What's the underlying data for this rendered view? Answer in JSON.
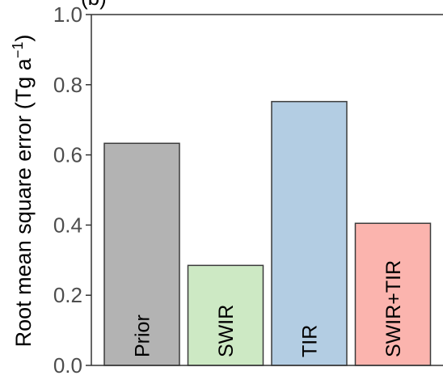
{
  "chart_data": {
    "type": "bar",
    "panel_label": "(b)",
    "categories": [
      "Prior",
      "SWIR",
      "TIR",
      "SWIR+TIR"
    ],
    "values": [
      0.633,
      0.285,
      0.752,
      0.405
    ],
    "colors": [
      "#b3b3b3",
      "#cde9c4",
      "#b3cde3",
      "#fbb4ae"
    ],
    "ylabel": "Root mean square error",
    "ylabel_unit": "(Tg a",
    "ylabel_unit_sup": "−1",
    "ylabel_unit_close": ")",
    "ylim": [
      0.0,
      1.0
    ],
    "yticks": [
      "0.0",
      "0.2",
      "0.4",
      "0.6",
      "0.8",
      "1.0"
    ],
    "grid": false
  }
}
